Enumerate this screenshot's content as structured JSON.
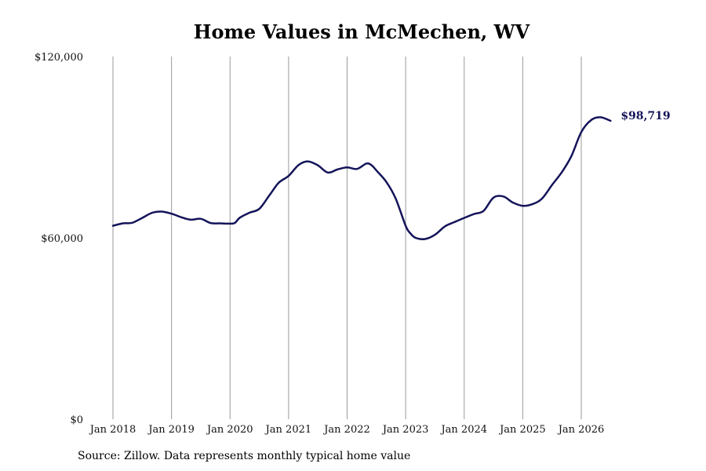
{
  "chart_data": {
    "type": "line",
    "title": "Home Values in McMechen, WV",
    "xlabel": "",
    "ylabel": "",
    "ylim": [
      0,
      120000
    ],
    "y_ticks": [
      {
        "value": 0,
        "label": "$0"
      },
      {
        "value": 60000,
        "label": "$60,000"
      },
      {
        "value": 120000,
        "label": "$120,000"
      }
    ],
    "x_ticks": [
      {
        "value": 2018.0,
        "label": "Jan 2018"
      },
      {
        "value": 2019.0,
        "label": "Jan 2019"
      },
      {
        "value": 2020.0,
        "label": "Jan 2020"
      },
      {
        "value": 2021.0,
        "label": "Jan 2021"
      },
      {
        "value": 2022.0,
        "label": "Jan 2022"
      },
      {
        "value": 2023.0,
        "label": "Jan 2023"
      },
      {
        "value": 2024.0,
        "label": "Jan 2024"
      },
      {
        "value": 2025.0,
        "label": "Jan 2025"
      },
      {
        "value": 2026.0,
        "label": "Jan 2026"
      }
    ],
    "grid": "vertical",
    "line_color": "#14145a",
    "end_label": "$98,719",
    "series": [
      {
        "x": [
          2018.0,
          2018.17,
          2018.33,
          2018.5,
          2018.67,
          2018.83,
          2019.0,
          2019.17,
          2019.33,
          2019.5,
          2019.67,
          2019.83,
          2020.0,
          2020.08,
          2020.17,
          2020.33,
          2020.5,
          2020.67,
          2020.83,
          2021.0,
          2021.17,
          2021.33,
          2021.5,
          2021.67,
          2021.83,
          2022.0,
          2022.17,
          2022.33,
          2022.42,
          2022.5,
          2022.67,
          2022.83,
          2023.0,
          2023.08,
          2023.17,
          2023.33,
          2023.5,
          2023.67,
          2023.83,
          2024.0,
          2024.17,
          2024.33,
          2024.5,
          2024.67,
          2024.83,
          2025.0,
          2025.17,
          2025.33,
          2025.5,
          2025.67,
          2025.83,
          2026.0,
          2026.17,
          2026.33,
          2026.5
        ],
        "y": [
          64000,
          64800,
          65000,
          66600,
          68300,
          68700,
          68000,
          66800,
          66000,
          66300,
          64900,
          64800,
          64700,
          64900,
          66700,
          68300,
          69600,
          74000,
          78200,
          80500,
          84100,
          85300,
          84000,
          81600,
          82600,
          83300,
          82800,
          84600,
          84000,
          82300,
          78500,
          73000,
          64000,
          61500,
          60000,
          59600,
          61000,
          63800,
          65200,
          66600,
          67900,
          68900,
          73300,
          73700,
          71700,
          70600,
          71200,
          73000,
          77500,
          81800,
          87000,
          95000,
          99000,
          99900,
          98719
        ]
      }
    ]
  },
  "source_note": "Source: Zillow. Data represents monthly typical home value"
}
